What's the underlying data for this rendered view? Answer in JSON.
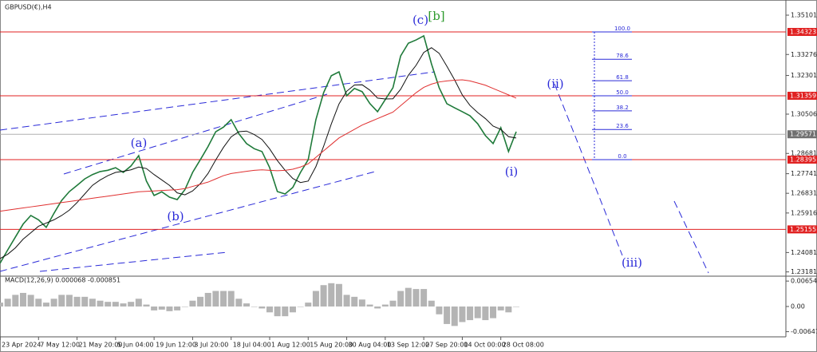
{
  "title": "GBPUSD(€),H4",
  "chart_data": [
    {
      "type": "line",
      "xlim": [
        0,
        102
      ],
      "xticks": [
        {
          "value": 0,
          "label": "23 Apr 2024"
        },
        {
          "value": 5,
          "label": "7 May 12:00"
        },
        {
          "value": 10,
          "label": "21 May 20:00"
        },
        {
          "value": 15,
          "label": "5 Jun 04:00"
        },
        {
          "value": 20,
          "label": "19 Jun 12:00"
        },
        {
          "value": 25,
          "label": "3 Jul 20:00"
        },
        {
          "value": 30,
          "label": "18 Jul 04:00"
        },
        {
          "value": 35,
          "label": "1 Aug 12:00"
        },
        {
          "value": 40,
          "label": "15 Aug 20:00"
        },
        {
          "value": 45,
          "label": "30 Aug 04:00"
        },
        {
          "value": 50,
          "label": "13 Sep 12:00"
        },
        {
          "value": 55,
          "label": "27 Sep 20:00"
        },
        {
          "value": 60,
          "label": "14 Oct 00:00"
        },
        {
          "value": 65,
          "label": "28 Oct 08:00"
        }
      ],
      "ylim": [
        1.2302,
        1.3562
      ],
      "yticks": [
        1.35101,
        1.33276,
        1.32301,
        1.30506,
        1.28681,
        1.27741,
        1.26831,
        1.25916,
        1.24081,
        1.23181
      ],
      "levels": [
        1.34323,
        1.31359,
        1.28395,
        1.25155
      ],
      "level_color": "#e02020",
      "current_price": 1.29571,
      "fib_levels": [
        {
          "value": 100,
          "label": "100.0"
        },
        {
          "value": 78.6,
          "label": "78.6"
        },
        {
          "value": 61.8,
          "label": "61.8"
        },
        {
          "value": 50,
          "label": "50.0"
        },
        38.2,
        23.6,
        {
          "value": 0,
          "label": "0.0"
        }
      ],
      "annotations": [
        "(c)",
        "[b]",
        "(a)",
        "(b)",
        "(i)",
        "(ii)",
        "(iii)"
      ],
      "series": [
        {
          "color": "#1f7a3a",
          "values": [
            1.2358,
            1.242,
            1.248,
            1.254,
            1.258,
            1.256,
            1.2525,
            1.259,
            1.265,
            1.2691,
            1.272,
            1.275,
            1.277,
            1.2784,
            1.279,
            1.2802,
            1.278,
            1.281,
            1.2858,
            1.274,
            1.2673,
            1.269,
            1.2665,
            1.2654,
            1.27,
            1.278,
            1.2839,
            1.29,
            1.2969,
            1.299,
            1.3025,
            1.296,
            1.2914,
            1.289,
            1.2877,
            1.2802,
            1.2691,
            1.268,
            1.271,
            1.278,
            1.2839,
            1.3025,
            1.315,
            1.3229,
            1.3247,
            1.3136,
            1.317,
            1.3155,
            1.31,
            1.3062,
            1.3118,
            1.3173,
            1.3321,
            1.338,
            1.3395,
            1.3414,
            1.3284,
            1.3173,
            1.3099,
            1.308,
            1.3062,
            1.3043,
            1.3006,
            1.2951,
            1.2914,
            1.2988,
            1.2877,
            1.2969
          ]
        },
        {
          "color": "#111111",
          "values": [
            1.238,
            1.24,
            1.243,
            1.247,
            1.25,
            1.253,
            1.2545,
            1.256,
            1.258,
            1.2605,
            1.264,
            1.268,
            1.272,
            1.2745,
            1.2765,
            1.278,
            1.2785,
            1.2792,
            1.2805,
            1.2798,
            1.277,
            1.2745,
            1.272,
            1.2685,
            1.2676,
            1.2694,
            1.2728,
            1.2775,
            1.2838,
            1.2896,
            1.2945,
            1.2969,
            1.2972,
            1.2956,
            1.2933,
            1.2889,
            1.2835,
            1.279,
            1.2752,
            1.2733,
            1.274,
            1.2807,
            1.2901,
            1.3005,
            1.3098,
            1.3157,
            1.3186,
            1.3187,
            1.3162,
            1.3125,
            1.3121,
            1.3122,
            1.3166,
            1.3231,
            1.3277,
            1.3337,
            1.3359,
            1.3333,
            1.3273,
            1.321,
            1.314,
            1.3091,
            1.3058,
            1.303,
            1.2995,
            1.298,
            1.2946,
            1.294
          ]
        },
        {
          "color": "#e03030",
          "values": [
            1.26,
            1.2605,
            1.261,
            1.2615,
            1.262,
            1.2625,
            1.263,
            1.2635,
            1.264,
            1.2645,
            1.265,
            1.2655,
            1.266,
            1.2665,
            1.267,
            1.2675,
            1.268,
            1.2685,
            1.269,
            1.2692,
            1.2694,
            1.2696,
            1.2698,
            1.27,
            1.2705,
            1.2715,
            1.2725,
            1.2735,
            1.275,
            1.2765,
            1.2775,
            1.278,
            1.2785,
            1.279,
            1.2792,
            1.279,
            1.2788,
            1.279,
            1.2795,
            1.2805,
            1.282,
            1.285,
            1.288,
            1.291,
            1.294,
            1.296,
            1.298,
            1.3,
            1.3015,
            1.303,
            1.3045,
            1.306,
            1.309,
            1.312,
            1.315,
            1.3175,
            1.319,
            1.32,
            1.3205,
            1.3208,
            1.321,
            1.3205,
            1.3195,
            1.3185,
            1.317,
            1.3155,
            1.314,
            1.3125
          ]
        }
      ]
    },
    {
      "type": "bar",
      "title": "MACD(12,26,9) 0.000068 -0.000851",
      "ylim": [
        -0.0078,
        0.0076
      ],
      "yticks": [
        0.006544,
        {
          "value": 0,
          "label": "0.00"
        },
        -0.006477
      ],
      "color": "#b4b4b4",
      "values": [
        0.001,
        0.002,
        0.003,
        0.0035,
        0.003,
        0.002,
        0.001,
        0.002,
        0.003,
        0.003,
        0.0025,
        0.0025,
        0.002,
        0.0015,
        0.0012,
        0.0012,
        0.0008,
        0.0012,
        0.002,
        0.0005,
        -0.001,
        -0.0008,
        -0.0012,
        -0.001,
        0.0,
        0.0015,
        0.0025,
        0.0035,
        0.004,
        0.004,
        0.004,
        0.002,
        0.0008,
        0.0,
        -0.0005,
        -0.0015,
        -0.0025,
        -0.0025,
        -0.0015,
        0.0,
        0.001,
        0.004,
        0.0055,
        0.006,
        0.0058,
        0.003,
        0.0025,
        0.0018,
        0.0005,
        -0.0005,
        0.0005,
        0.0015,
        0.004,
        0.0048,
        0.0045,
        0.0045,
        0.0015,
        -0.002,
        -0.0045,
        -0.005,
        -0.004,
        -0.0035,
        -0.003,
        -0.0035,
        -0.003,
        -0.001,
        -0.0015,
        0.0
      ]
    }
  ]
}
